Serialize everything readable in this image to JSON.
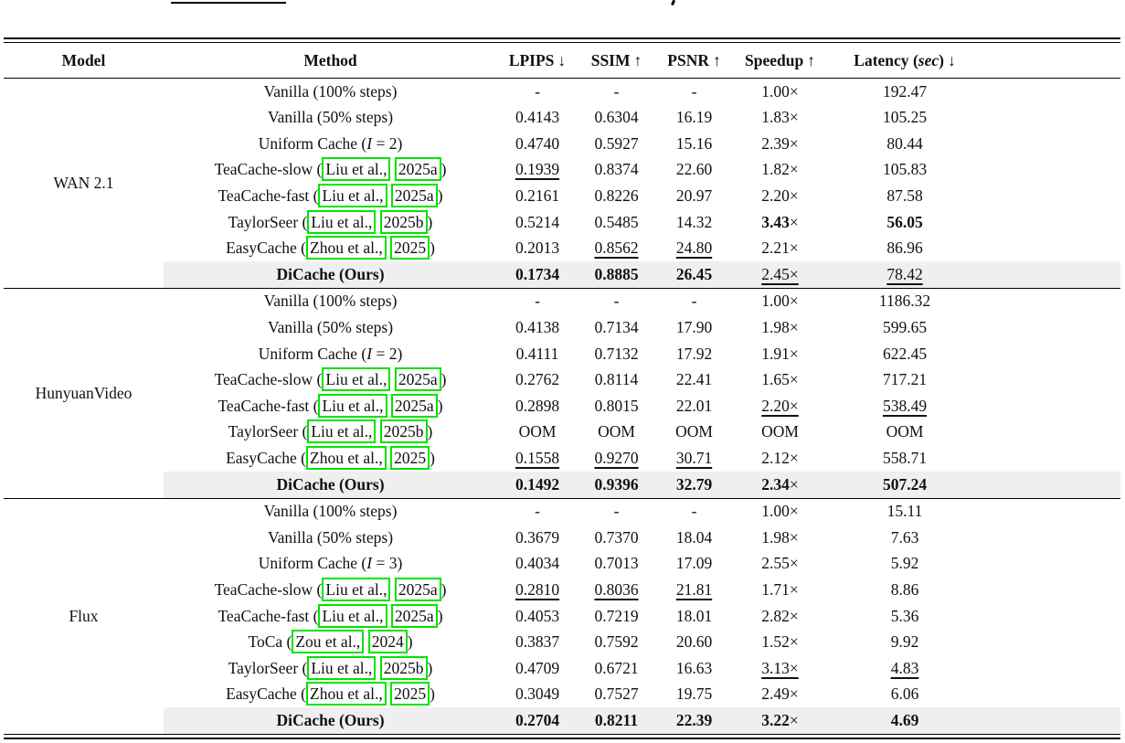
{
  "colors": {
    "green": "#00e400",
    "highlight": "#efefef",
    "rule": "#000000",
    "text": "#111111"
  },
  "artifacts": {
    "top_underline_fragment": "horizontal rule fragment of cropped text above table",
    "top_descender_fragment": "letter descender fragment of cropped text above table"
  },
  "table": {
    "columns": [
      {
        "label": "Model",
        "arrow": ""
      },
      {
        "label": "Method",
        "arrow": ""
      },
      {
        "label": "LPIPS",
        "arrow": "↓"
      },
      {
        "label": "SSIM",
        "arrow": "↑"
      },
      {
        "label": "PSNR",
        "arrow": "↑"
      },
      {
        "label": "Speedup",
        "arrow": "↑"
      },
      {
        "label": "Latency",
        "unit_prefix": " (",
        "unit": "sec",
        "unit_suffix": ")",
        "arrow": "↓"
      },
      {
        "label": "",
        "arrow": ""
      }
    ],
    "sections": [
      {
        "model": "WAN 2.1",
        "rows": [
          {
            "method": [
              {
                "t": "Vanilla (100% steps)"
              }
            ],
            "cells": [
              {
                "v": "-"
              },
              {
                "v": "-"
              },
              {
                "v": "-"
              },
              {
                "v": "1.00",
                "suffix": "×"
              },
              {
                "v": "192.47"
              }
            ]
          },
          {
            "method": [
              {
                "t": "Vanilla (50% steps)"
              }
            ],
            "cells": [
              {
                "v": "0.4143"
              },
              {
                "v": "0.6304"
              },
              {
                "v": "16.19"
              },
              {
                "v": "1.83",
                "suffix": "×"
              },
              {
                "v": "105.25"
              }
            ]
          },
          {
            "method": [
              {
                "t": "Uniform Cache ("
              },
              {
                "t": "I",
                "math": true
              },
              {
                "t": " = 2)"
              }
            ],
            "cells": [
              {
                "v": "0.4740"
              },
              {
                "v": "0.5927"
              },
              {
                "v": "15.16"
              },
              {
                "v": "2.39",
                "suffix": "×"
              },
              {
                "v": "80.44"
              }
            ]
          },
          {
            "method": [
              {
                "t": "TeaCache-slow ("
              },
              {
                "t": "Liu et al.,",
                "cite": true
              },
              {
                "t": " "
              },
              {
                "t": "2025a",
                "cite": true
              },
              {
                "t": ")"
              }
            ],
            "cells": [
              {
                "v": "0.1939",
                "s": "u"
              },
              {
                "v": "0.8374"
              },
              {
                "v": "22.60"
              },
              {
                "v": "1.82",
                "suffix": "×"
              },
              {
                "v": "105.83"
              }
            ]
          },
          {
            "method": [
              {
                "t": "TeaCache-fast ("
              },
              {
                "t": "Liu et al.,",
                "cite": true
              },
              {
                "t": " "
              },
              {
                "t": "2025a",
                "cite": true
              },
              {
                "t": ")"
              }
            ],
            "cells": [
              {
                "v": "0.2161"
              },
              {
                "v": "0.8226"
              },
              {
                "v": "20.97"
              },
              {
                "v": "2.20",
                "suffix": "×"
              },
              {
                "v": "87.58"
              }
            ]
          },
          {
            "method": [
              {
                "t": "TaylorSeer ("
              },
              {
                "t": "Liu et al.,",
                "cite": true
              },
              {
                "t": " "
              },
              {
                "t": "2025b",
                "cite": true
              },
              {
                "t": ")"
              }
            ],
            "cells": [
              {
                "v": "0.5214"
              },
              {
                "v": "0.5485"
              },
              {
                "v": "14.32"
              },
              {
                "v": "3.43",
                "suffix": "×",
                "s": "b"
              },
              {
                "v": "56.05",
                "s": "b"
              }
            ]
          },
          {
            "method": [
              {
                "t": "EasyCache ("
              },
              {
                "t": "Zhou et al.,",
                "cite": true
              },
              {
                "t": " "
              },
              {
                "t": "2025",
                "cite": true
              },
              {
                "t": ")"
              }
            ],
            "cells": [
              {
                "v": "0.2013"
              },
              {
                "v": "0.8562",
                "s": "u"
              },
              {
                "v": "24.80",
                "s": "u"
              },
              {
                "v": "2.21",
                "suffix": "×"
              },
              {
                "v": "86.96"
              }
            ]
          },
          {
            "method": [
              {
                "t": "DiCache (Ours)",
                "bold": true
              }
            ],
            "highlight": true,
            "cells": [
              {
                "v": "0.1734",
                "s": "b"
              },
              {
                "v": "0.8885",
                "s": "b"
              },
              {
                "v": "26.45",
                "s": "b"
              },
              {
                "v": "2.45",
                "suffix": "×",
                "s": "u"
              },
              {
                "v": "78.42",
                "s": "u"
              }
            ]
          }
        ]
      },
      {
        "model": "HunyuanVideo",
        "rows": [
          {
            "method": [
              {
                "t": "Vanilla (100% steps)"
              }
            ],
            "cells": [
              {
                "v": "-"
              },
              {
                "v": "-"
              },
              {
                "v": "-"
              },
              {
                "v": "1.00",
                "suffix": "×"
              },
              {
                "v": "1186.32"
              }
            ]
          },
          {
            "method": [
              {
                "t": "Vanilla (50% steps)"
              }
            ],
            "cells": [
              {
                "v": "0.4138"
              },
              {
                "v": "0.7134"
              },
              {
                "v": "17.90"
              },
              {
                "v": "1.98",
                "suffix": "×"
              },
              {
                "v": "599.65"
              }
            ]
          },
          {
            "method": [
              {
                "t": "Uniform Cache ("
              },
              {
                "t": "I",
                "math": true
              },
              {
                "t": " = 2)"
              }
            ],
            "cells": [
              {
                "v": "0.4111"
              },
              {
                "v": "0.7132"
              },
              {
                "v": "17.92"
              },
              {
                "v": "1.91",
                "suffix": "×"
              },
              {
                "v": "622.45"
              }
            ]
          },
          {
            "method": [
              {
                "t": "TeaCache-slow ("
              },
              {
                "t": "Liu et al.,",
                "cite": true
              },
              {
                "t": " "
              },
              {
                "t": "2025a",
                "cite": true
              },
              {
                "t": ")"
              }
            ],
            "cells": [
              {
                "v": "0.2762"
              },
              {
                "v": "0.8114"
              },
              {
                "v": "22.41"
              },
              {
                "v": "1.65",
                "suffix": "×"
              },
              {
                "v": "717.21"
              }
            ]
          },
          {
            "method": [
              {
                "t": "TeaCache-fast ("
              },
              {
                "t": "Liu et al.,",
                "cite": true
              },
              {
                "t": " "
              },
              {
                "t": "2025a",
                "cite": true
              },
              {
                "t": ")"
              }
            ],
            "cells": [
              {
                "v": "0.2898"
              },
              {
                "v": "0.8015"
              },
              {
                "v": "22.01"
              },
              {
                "v": "2.20",
                "suffix": "×",
                "s": "u"
              },
              {
                "v": "538.49",
                "s": "u"
              }
            ]
          },
          {
            "method": [
              {
                "t": "TaylorSeer ("
              },
              {
                "t": "Liu et al.,",
                "cite": true
              },
              {
                "t": " "
              },
              {
                "t": "2025b",
                "cite": true
              },
              {
                "t": ")"
              }
            ],
            "cells": [
              {
                "v": "OOM"
              },
              {
                "v": "OOM"
              },
              {
                "v": "OOM"
              },
              {
                "v": "OOM"
              },
              {
                "v": "OOM"
              }
            ]
          },
          {
            "method": [
              {
                "t": "EasyCache ("
              },
              {
                "t": "Zhou et al.,",
                "cite": true
              },
              {
                "t": " "
              },
              {
                "t": "2025",
                "cite": true
              },
              {
                "t": ")"
              }
            ],
            "cells": [
              {
                "v": "0.1558",
                "s": "u"
              },
              {
                "v": "0.9270",
                "s": "u"
              },
              {
                "v": "30.71",
                "s": "u"
              },
              {
                "v": "2.12",
                "suffix": "×"
              },
              {
                "v": "558.71"
              }
            ]
          },
          {
            "method": [
              {
                "t": "DiCache (Ours)",
                "bold": true
              }
            ],
            "highlight": true,
            "cells": [
              {
                "v": "0.1492",
                "s": "b"
              },
              {
                "v": "0.9396",
                "s": "b"
              },
              {
                "v": "32.79",
                "s": "b"
              },
              {
                "v": "2.34",
                "suffix": "×",
                "s": "b"
              },
              {
                "v": "507.24",
                "s": "b"
              }
            ]
          }
        ]
      },
      {
        "model": "Flux",
        "rows": [
          {
            "method": [
              {
                "t": "Vanilla (100% steps)"
              }
            ],
            "cells": [
              {
                "v": "-"
              },
              {
                "v": "-"
              },
              {
                "v": "-"
              },
              {
                "v": "1.00",
                "suffix": "×"
              },
              {
                "v": "15.11"
              }
            ]
          },
          {
            "method": [
              {
                "t": "Vanilla (50% steps)"
              }
            ],
            "cells": [
              {
                "v": "0.3679"
              },
              {
                "v": "0.7370"
              },
              {
                "v": "18.04"
              },
              {
                "v": "1.98",
                "suffix": "×"
              },
              {
                "v": "7.63"
              }
            ]
          },
          {
            "method": [
              {
                "t": "Uniform Cache ("
              },
              {
                "t": "I",
                "math": true
              },
              {
                "t": " = 3)"
              }
            ],
            "cells": [
              {
                "v": "0.4034"
              },
              {
                "v": "0.7013"
              },
              {
                "v": "17.09"
              },
              {
                "v": "2.55",
                "suffix": "×"
              },
              {
                "v": "5.92"
              }
            ]
          },
          {
            "method": [
              {
                "t": "TeaCache-slow ("
              },
              {
                "t": "Liu et al.,",
                "cite": true
              },
              {
                "t": " "
              },
              {
                "t": "2025a",
                "cite": true
              },
              {
                "t": ")"
              }
            ],
            "cells": [
              {
                "v": "0.2810",
                "s": "u"
              },
              {
                "v": "0.8036",
                "s": "u"
              },
              {
                "v": "21.81",
                "s": "u"
              },
              {
                "v": "1.71",
                "suffix": "×"
              },
              {
                "v": "8.86"
              }
            ]
          },
          {
            "method": [
              {
                "t": "TeaCache-fast ("
              },
              {
                "t": "Liu et al.,",
                "cite": true
              },
              {
                "t": " "
              },
              {
                "t": "2025a",
                "cite": true
              },
              {
                "t": ")"
              }
            ],
            "cells": [
              {
                "v": "0.4053"
              },
              {
                "v": "0.7219"
              },
              {
                "v": "18.01"
              },
              {
                "v": "2.82",
                "suffix": "×"
              },
              {
                "v": "5.36"
              }
            ]
          },
          {
            "method": [
              {
                "t": "ToCa ("
              },
              {
                "t": "Zou et al.,",
                "cite": true
              },
              {
                "t": " "
              },
              {
                "t": "2024",
                "cite": true
              },
              {
                "t": ")"
              }
            ],
            "cells": [
              {
                "v": "0.3837"
              },
              {
                "v": "0.7592"
              },
              {
                "v": "20.60"
              },
              {
                "v": "1.52",
                "suffix": "×"
              },
              {
                "v": "9.92"
              }
            ]
          },
          {
            "method": [
              {
                "t": "TaylorSeer ("
              },
              {
                "t": "Liu et al.,",
                "cite": true
              },
              {
                "t": " "
              },
              {
                "t": "2025b",
                "cite": true
              },
              {
                "t": ")"
              }
            ],
            "cells": [
              {
                "v": "0.4709"
              },
              {
                "v": "0.6721"
              },
              {
                "v": "16.63"
              },
              {
                "v": "3.13",
                "suffix": "×",
                "s": "u"
              },
              {
                "v": "4.83",
                "s": "u"
              }
            ]
          },
          {
            "method": [
              {
                "t": "EasyCache ("
              },
              {
                "t": "Zhou et al.,",
                "cite": true
              },
              {
                "t": " "
              },
              {
                "t": "2025",
                "cite": true
              },
              {
                "t": ")"
              }
            ],
            "cells": [
              {
                "v": "0.3049"
              },
              {
                "v": "0.7527"
              },
              {
                "v": "19.75"
              },
              {
                "v": "2.49",
                "suffix": "×"
              },
              {
                "v": "6.06"
              }
            ]
          },
          {
            "method": [
              {
                "t": "DiCache (Ours)",
                "bold": true
              }
            ],
            "highlight": true,
            "cells": [
              {
                "v": "0.2704",
                "s": "b"
              },
              {
                "v": "0.8211",
                "s": "b"
              },
              {
                "v": "22.39",
                "s": "b"
              },
              {
                "v": "3.22",
                "suffix": "×",
                "s": "b"
              },
              {
                "v": "4.69",
                "s": "b"
              }
            ]
          }
        ]
      }
    ]
  }
}
